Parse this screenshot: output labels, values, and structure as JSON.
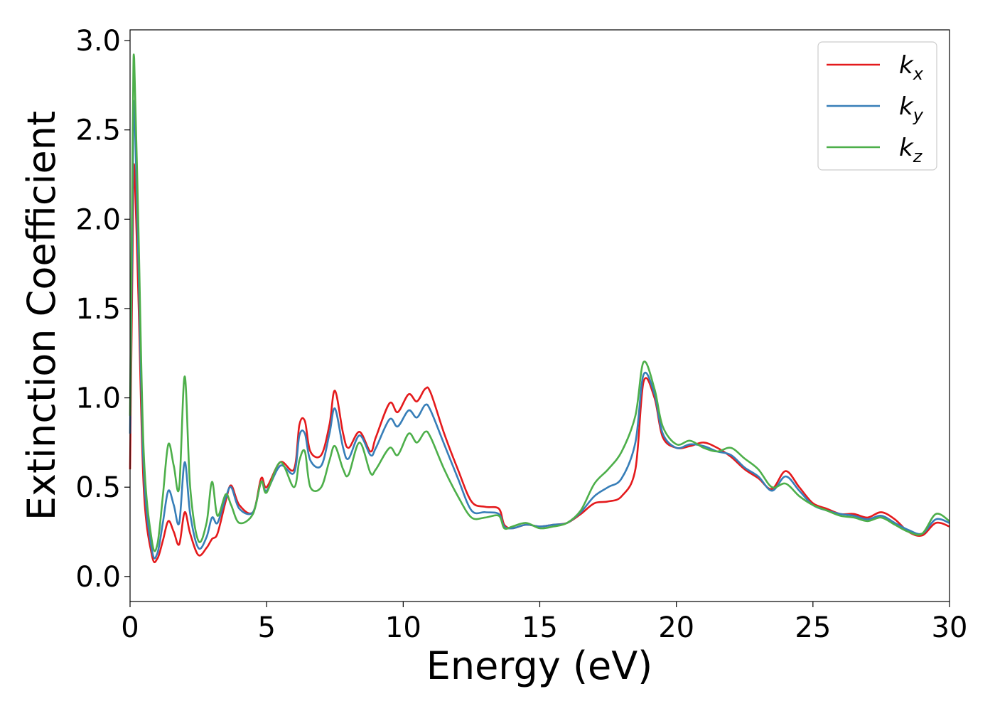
{
  "chart_data": {
    "type": "line",
    "title": "",
    "xlabel": "Energy (eV)",
    "ylabel": "Extinction Coefficient",
    "xlim": [
      0,
      30
    ],
    "ylim": [
      -0.14,
      3.06
    ],
    "xticks": [
      0,
      5,
      10,
      15,
      20,
      25,
      30
    ],
    "xtick_labels": [
      "0",
      "5",
      "10",
      "15",
      "20",
      "25",
      "30"
    ],
    "yticks": [
      0.0,
      0.5,
      1.0,
      1.5,
      2.0,
      2.5,
      3.0
    ],
    "ytick_labels": [
      "0.0",
      "0.5",
      "1.0",
      "1.5",
      "2.0",
      "2.5",
      "3.0"
    ],
    "grid": false,
    "legend_position": "top-right",
    "series": [
      {
        "name": "k_x",
        "legend_base": "k",
        "legend_sub": "x",
        "color": "#e41a1c",
        "x": [
          0,
          0.1,
          0.15,
          0.3,
          0.5,
          0.8,
          1.0,
          1.2,
          1.4,
          1.6,
          1.8,
          2.0,
          2.2,
          2.5,
          2.8,
          3.0,
          3.2,
          3.5,
          3.7,
          4.0,
          4.5,
          4.8,
          5.0,
          5.5,
          6.0,
          6.2,
          6.4,
          6.6,
          7.0,
          7.3,
          7.5,
          7.8,
          8.0,
          8.4,
          8.8,
          9.0,
          9.5,
          9.8,
          10.2,
          10.5,
          10.8,
          11.0,
          11.5,
          12.0,
          12.5,
          13.0,
          13.5,
          13.7,
          14.0,
          14.5,
          15.0,
          15.5,
          16.0,
          16.5,
          17.0,
          17.5,
          18.0,
          18.5,
          18.8,
          19.2,
          19.5,
          20.0,
          20.5,
          21.0,
          21.5,
          22.0,
          22.5,
          23.0,
          23.5,
          24.0,
          24.5,
          25.0,
          25.5,
          26.0,
          26.5,
          27.0,
          27.5,
          28.0,
          28.5,
          29.0,
          29.5,
          30.0
        ],
        "y": [
          0.6,
          1.9,
          2.3,
          1.6,
          0.5,
          0.12,
          0.1,
          0.2,
          0.31,
          0.25,
          0.18,
          0.36,
          0.24,
          0.12,
          0.16,
          0.21,
          0.24,
          0.42,
          0.51,
          0.4,
          0.36,
          0.55,
          0.5,
          0.64,
          0.6,
          0.85,
          0.87,
          0.7,
          0.68,
          0.85,
          1.04,
          0.8,
          0.72,
          0.81,
          0.7,
          0.78,
          0.97,
          0.92,
          1.02,
          0.98,
          1.05,
          1.03,
          0.8,
          0.6,
          0.42,
          0.39,
          0.38,
          0.29,
          0.27,
          0.29,
          0.28,
          0.29,
          0.3,
          0.35,
          0.41,
          0.42,
          0.45,
          0.6,
          1.09,
          1.0,
          0.78,
          0.72,
          0.73,
          0.75,
          0.72,
          0.67,
          0.6,
          0.55,
          0.49,
          0.59,
          0.5,
          0.41,
          0.38,
          0.35,
          0.35,
          0.33,
          0.36,
          0.32,
          0.25,
          0.23,
          0.3,
          0.28
        ]
      },
      {
        "name": "k_y",
        "legend_base": "k",
        "legend_sub": "y",
        "color": "#377eb8",
        "x": [
          0,
          0.1,
          0.15,
          0.3,
          0.5,
          0.8,
          1.0,
          1.2,
          1.4,
          1.6,
          1.8,
          2.0,
          2.2,
          2.5,
          2.8,
          3.0,
          3.2,
          3.5,
          3.7,
          4.0,
          4.5,
          4.8,
          5.0,
          5.5,
          6.0,
          6.2,
          6.4,
          6.6,
          7.0,
          7.3,
          7.5,
          7.8,
          8.0,
          8.4,
          8.8,
          9.0,
          9.5,
          9.8,
          10.2,
          10.5,
          10.8,
          11.0,
          11.5,
          12.0,
          12.5,
          13.0,
          13.5,
          13.7,
          14.0,
          14.5,
          15.0,
          15.5,
          16.0,
          16.5,
          17.0,
          17.5,
          18.0,
          18.5,
          18.8,
          19.2,
          19.5,
          20.0,
          20.5,
          21.0,
          21.5,
          22.0,
          22.5,
          23.0,
          23.5,
          24.0,
          24.5,
          25.0,
          25.5,
          26.0,
          26.5,
          27.0,
          27.5,
          28.0,
          28.5,
          29.0,
          29.5,
          30.0
        ],
        "y": [
          0.8,
          2.2,
          2.65,
          1.8,
          0.6,
          0.15,
          0.13,
          0.3,
          0.48,
          0.4,
          0.3,
          0.64,
          0.35,
          0.16,
          0.22,
          0.33,
          0.3,
          0.44,
          0.5,
          0.38,
          0.36,
          0.53,
          0.48,
          0.62,
          0.58,
          0.79,
          0.8,
          0.65,
          0.62,
          0.8,
          0.94,
          0.72,
          0.66,
          0.79,
          0.68,
          0.72,
          0.88,
          0.84,
          0.93,
          0.89,
          0.96,
          0.93,
          0.74,
          0.55,
          0.37,
          0.36,
          0.35,
          0.28,
          0.27,
          0.29,
          0.28,
          0.29,
          0.3,
          0.36,
          0.45,
          0.5,
          0.55,
          0.75,
          1.13,
          1.02,
          0.8,
          0.72,
          0.74,
          0.73,
          0.7,
          0.68,
          0.61,
          0.56,
          0.48,
          0.56,
          0.48,
          0.4,
          0.37,
          0.35,
          0.34,
          0.32,
          0.34,
          0.3,
          0.26,
          0.24,
          0.32,
          0.3
        ]
      },
      {
        "name": "k_z",
        "legend_base": "k",
        "legend_sub": "z",
        "color": "#4daf4a",
        "x": [
          0,
          0.1,
          0.15,
          0.3,
          0.5,
          0.8,
          1.0,
          1.2,
          1.4,
          1.6,
          1.8,
          2.0,
          2.2,
          2.5,
          2.8,
          3.0,
          3.2,
          3.5,
          3.7,
          4.0,
          4.5,
          4.8,
          5.0,
          5.5,
          6.0,
          6.2,
          6.4,
          6.6,
          7.0,
          7.3,
          7.5,
          7.8,
          8.0,
          8.4,
          8.8,
          9.0,
          9.5,
          9.8,
          10.2,
          10.5,
          10.8,
          11.0,
          11.5,
          12.0,
          12.5,
          13.0,
          13.5,
          13.7,
          14.0,
          14.5,
          15.0,
          15.5,
          16.0,
          16.5,
          17.0,
          17.5,
          18.0,
          18.5,
          18.8,
          19.2,
          19.5,
          20.0,
          20.5,
          21.0,
          21.5,
          22.0,
          22.5,
          23.0,
          23.5,
          24.0,
          24.5,
          25.0,
          25.5,
          26.0,
          26.5,
          27.0,
          27.5,
          28.0,
          28.5,
          29.0,
          29.5,
          30.0
        ],
        "y": [
          0.9,
          2.5,
          2.9,
          2.0,
          0.7,
          0.2,
          0.18,
          0.45,
          0.74,
          0.62,
          0.5,
          1.12,
          0.5,
          0.2,
          0.3,
          0.53,
          0.34,
          0.46,
          0.4,
          0.3,
          0.35,
          0.53,
          0.47,
          0.64,
          0.5,
          0.65,
          0.7,
          0.5,
          0.5,
          0.65,
          0.73,
          0.6,
          0.57,
          0.75,
          0.58,
          0.6,
          0.72,
          0.68,
          0.8,
          0.75,
          0.81,
          0.78,
          0.6,
          0.45,
          0.33,
          0.33,
          0.34,
          0.27,
          0.28,
          0.3,
          0.27,
          0.28,
          0.3,
          0.37,
          0.52,
          0.6,
          0.7,
          0.9,
          1.2,
          1.05,
          0.84,
          0.74,
          0.76,
          0.72,
          0.7,
          0.72,
          0.66,
          0.6,
          0.5,
          0.52,
          0.45,
          0.4,
          0.37,
          0.34,
          0.33,
          0.31,
          0.33,
          0.29,
          0.25,
          0.24,
          0.35,
          0.31
        ]
      }
    ]
  }
}
